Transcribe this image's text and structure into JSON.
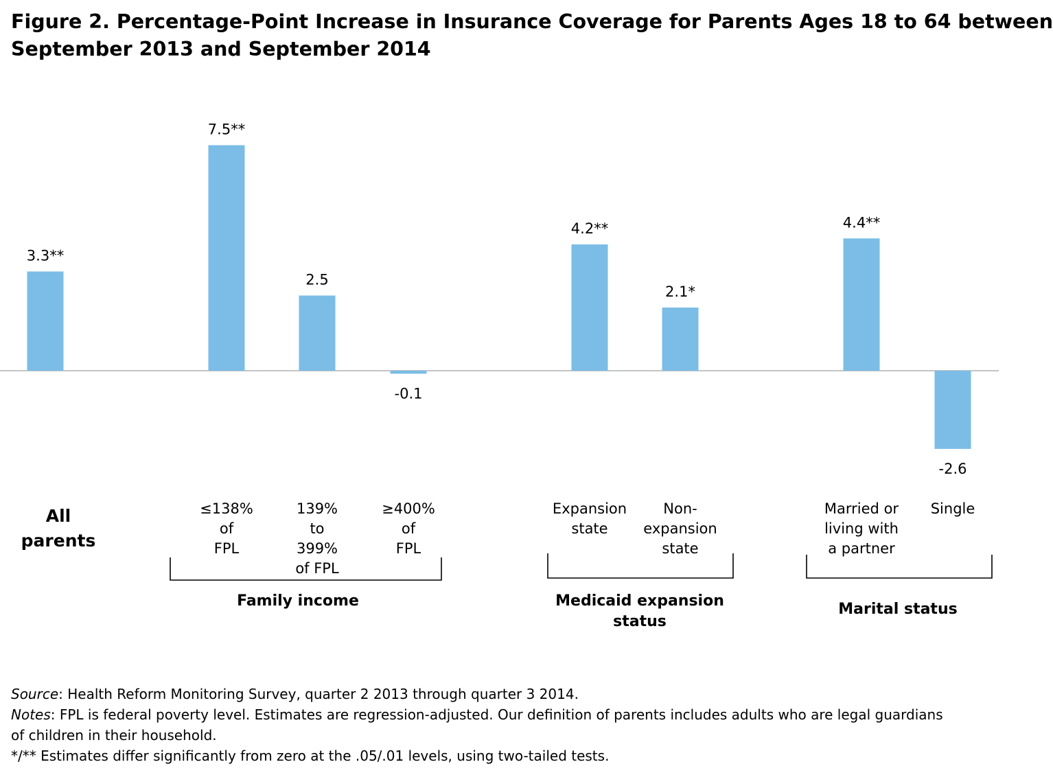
{
  "title": {
    "line1": "Figure 2. Percentage-Point Increase in Insurance Coverage for Parents Ages 18 to 64 between",
    "line2": "September 2013 and September 2014"
  },
  "chart_data": {
    "type": "bar",
    "categories": [
      [
        "All",
        "parents"
      ],
      [
        "≤138%",
        "of",
        "FPL"
      ],
      [
        "139%",
        "to",
        "399%",
        "of FPL"
      ],
      [
        "≥400%",
        "of",
        "FPL"
      ],
      [
        "Expansion",
        "state"
      ],
      [
        "Non-",
        "expansion",
        "state"
      ],
      [
        "Married or",
        "living with",
        "a partner"
      ],
      [
        "Single"
      ]
    ],
    "values": [
      3.3,
      7.5,
      2.5,
      -0.1,
      4.2,
      2.1,
      4.4,
      -2.6
    ],
    "data_labels": [
      "3.3**",
      "7.5**",
      "2.5",
      "-0.1",
      "4.2**",
      "2.1*",
      "4.4**",
      "-2.6"
    ],
    "groups": [
      {
        "label_lines": [
          "Family income"
        ],
        "members": [
          1,
          2,
          3
        ]
      },
      {
        "label_lines": [
          "Medicaid expansion",
          "status"
        ],
        "members": [
          4,
          5
        ]
      },
      {
        "label_lines": [
          "Marital status"
        ],
        "members": [
          6,
          7
        ]
      }
    ],
    "ylim": [
      -3.2,
      8.0
    ],
    "bar_color": "#7bbde6",
    "axis_color": "#a0a0a0",
    "grid": false
  },
  "footer": {
    "source_label": "Source",
    "source_text": ": Health Reform Monitoring Survey, quarter 2 2013 through quarter 3 2014.",
    "notes_label": "Notes",
    "notes_text": ":  FPL is federal poverty level.  Estimates are regression-adjusted.  Our definition of parents includes adults who are legal guardians",
    "notes_text2": "of children in their household.",
    "significance": "*/** Estimates differ significantly from zero at the .05/.01 levels, using two-tailed tests."
  }
}
